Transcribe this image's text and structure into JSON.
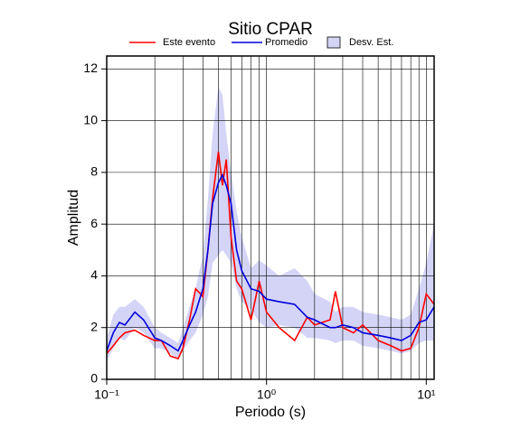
{
  "chart_data": {
    "type": "line",
    "title": "Sitio CPAR",
    "x_label": "Periodo (s)",
    "y_label": "Amplitud",
    "x_log": true,
    "grid": true,
    "xlim": [
      0.1,
      11.2
    ],
    "ylim": [
      0,
      12.5
    ],
    "xticks": [
      {
        "value": 0.1,
        "label": "10⁻¹"
      },
      {
        "value": 1,
        "label": "10⁰"
      },
      {
        "value": 10,
        "label": "10¹"
      }
    ],
    "x_minor_ticks": [
      0.2,
      0.3,
      0.4,
      0.5,
      0.6,
      0.7,
      0.8,
      0.9,
      2,
      3,
      4,
      5,
      6,
      7,
      8,
      9
    ],
    "yticks": [
      0,
      2,
      4,
      6,
      8,
      10,
      12
    ],
    "x": [
      0.1,
      0.11,
      0.12,
      0.13,
      0.15,
      0.17,
      0.2,
      0.22,
      0.25,
      0.28,
      0.3,
      0.33,
      0.36,
      0.4,
      0.43,
      0.46,
      0.5,
      0.53,
      0.56,
      0.6,
      0.65,
      0.7,
      0.8,
      0.9,
      1.0,
      1.2,
      1.5,
      1.8,
      2.0,
      2.5,
      2.7,
      3.0,
      3.5,
      4.0,
      5.0,
      6.0,
      7.0,
      8.0,
      9.0,
      10.0,
      11.2
    ],
    "band": {
      "name": "Desv. Est.",
      "color": "#d4d4f7",
      "upper": [
        1.6,
        2.5,
        2.8,
        2.8,
        3.1,
        2.8,
        2.0,
        1.8,
        1.6,
        1.4,
        2.0,
        2.8,
        3.5,
        4.8,
        7.0,
        9.5,
        11.3,
        11.0,
        9.5,
        8.0,
        6.5,
        5.5,
        4.3,
        4.6,
        4.4,
        4.0,
        4.3,
        3.8,
        3.3,
        3.0,
        2.6,
        2.8,
        2.8,
        2.6,
        2.5,
        2.4,
        2.3,
        2.5,
        3.5,
        4.5,
        6.0
      ],
      "lower": [
        0.7,
        1.2,
        1.6,
        1.5,
        2.0,
        1.8,
        1.2,
        1.2,
        1.0,
        0.8,
        1.1,
        1.5,
        1.8,
        2.5,
        3.2,
        4.5,
        4.8,
        5.0,
        4.8,
        4.5,
        3.5,
        3.0,
        2.7,
        2.2,
        2.0,
        2.1,
        2.0,
        1.6,
        1.6,
        1.5,
        1.4,
        1.5,
        1.5,
        1.3,
        1.2,
        1.1,
        1.0,
        1.1,
        1.4,
        1.5,
        1.5
      ]
    },
    "series": [
      {
        "name": "Este evento",
        "color": "#ff0000",
        "values": [
          1.0,
          1.3,
          1.6,
          1.8,
          1.9,
          1.7,
          1.5,
          1.5,
          0.9,
          0.8,
          1.2,
          2.3,
          3.5,
          3.2,
          5.0,
          7.0,
          8.8,
          7.5,
          8.5,
          5.5,
          3.8,
          3.5,
          2.3,
          3.8,
          2.6,
          2.0,
          1.5,
          2.4,
          2.1,
          2.3,
          3.4,
          2.0,
          1.8,
          2.1,
          1.5,
          1.3,
          1.1,
          1.2,
          2.0,
          3.3,
          2.9
        ]
      },
      {
        "name": "Promedio",
        "color": "#0000dd",
        "values": [
          1.1,
          1.8,
          2.2,
          2.1,
          2.6,
          2.3,
          1.6,
          1.5,
          1.3,
          1.1,
          1.5,
          2.1,
          2.6,
          3.5,
          5.0,
          6.8,
          7.6,
          7.9,
          7.5,
          6.8,
          5.0,
          4.2,
          3.5,
          3.4,
          3.1,
          3.0,
          2.9,
          2.4,
          2.3,
          2.0,
          2.0,
          2.1,
          2.0,
          1.8,
          1.7,
          1.6,
          1.5,
          1.7,
          2.2,
          2.3,
          2.8
        ]
      }
    ]
  }
}
